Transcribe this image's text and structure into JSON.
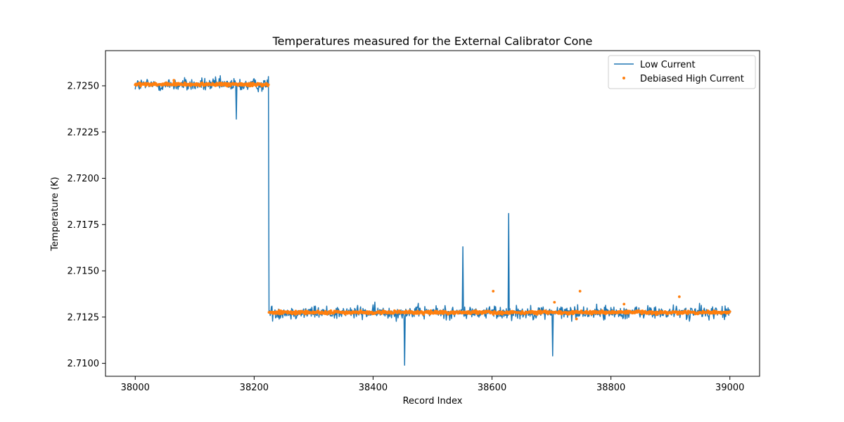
{
  "chart_data": {
    "type": "line",
    "title": "Temperatures measured for the External Calibrator Cone",
    "xlabel": "Record Index",
    "ylabel": "Temperature (K)",
    "xlim": [
      37950,
      39050
    ],
    "ylim": [
      2.7093,
      2.7269
    ],
    "xticks": [
      38000,
      38200,
      38400,
      38600,
      38800,
      39000
    ],
    "yticks": [
      2.71,
      2.7125,
      2.715,
      2.7175,
      2.72,
      2.7225,
      2.725
    ],
    "xtick_labels": [
      "38000",
      "38200",
      "38400",
      "38600",
      "38800",
      "39000"
    ],
    "ytick_labels": [
      "2.7100",
      "2.7125",
      "2.7150",
      "2.7175",
      "2.7200",
      "2.7225",
      "2.7250"
    ],
    "legend_position": "upper-right",
    "series": [
      {
        "name": "Low Current",
        "style": "line",
        "color": "#1f77b4",
        "x_range": [
          38000,
          39000
        ],
        "segments": [
          {
            "x_start": 38000,
            "x_end": 38224,
            "mean": 2.72505,
            "noise_amplitude": 0.0008
          },
          {
            "x_start": 38225,
            "x_end": 39000,
            "mean": 2.71275,
            "noise_amplitude": 0.0008
          }
        ],
        "spikes": [
          {
            "x": 38224,
            "y": 2.7255
          },
          {
            "x": 38551,
            "y": 2.7163
          },
          {
            "x": 38628,
            "y": 2.7181
          },
          {
            "x": 38453,
            "y": 2.7099
          },
          {
            "x": 38702,
            "y": 2.7104
          },
          {
            "x": 38170,
            "y": 2.7232
          }
        ]
      },
      {
        "name": "Debiased High Current",
        "style": "scatter",
        "color": "#ff7f0e",
        "x_range": [
          38000,
          39000
        ],
        "segments": [
          {
            "x_start": 38000,
            "x_end": 38224,
            "mean": 2.72507,
            "noise_amplitude": 0.00018
          },
          {
            "x_start": 38225,
            "x_end": 39000,
            "mean": 2.71275,
            "noise_amplitude": 0.00018
          }
        ],
        "outliers": [
          {
            "x": 38065,
            "y": 2.7253
          },
          {
            "x": 38602,
            "y": 2.7139
          },
          {
            "x": 38748,
            "y": 2.7139
          },
          {
            "x": 38705,
            "y": 2.7133
          },
          {
            "x": 38915,
            "y": 2.7136
          },
          {
            "x": 38742,
            "y": 2.7124
          },
          {
            "x": 38822,
            "y": 2.7132
          }
        ]
      }
    ]
  }
}
